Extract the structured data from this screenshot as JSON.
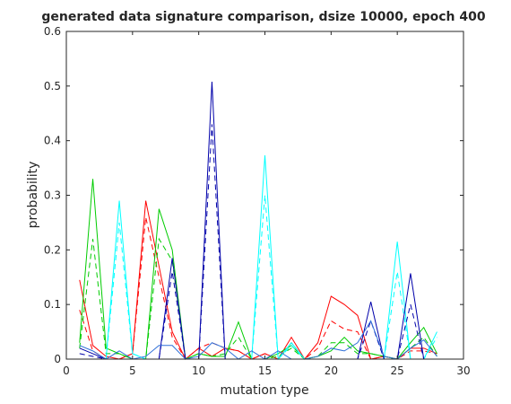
{
  "chart_data": {
    "type": "line",
    "title": "generated data signature comparison, dsize 10000, epoch 400",
    "xlabel": "mutation type",
    "ylabel": "probability",
    "xlim": [
      0,
      30
    ],
    "ylim": [
      0,
      0.6
    ],
    "xticks": [
      0,
      5,
      10,
      15,
      20,
      25,
      30
    ],
    "yticks": [
      0,
      0.1,
      0.2,
      0.3,
      0.4,
      0.5,
      0.6
    ],
    "xtick_labels": [
      "0",
      "5",
      "10",
      "15",
      "20",
      "25",
      "30"
    ],
    "ytick_labels": [
      "0",
      "0.1",
      "0.2",
      "0.3",
      "0.4",
      "0.5",
      "0.6"
    ],
    "grid": false,
    "legend": "none",
    "x": [
      1,
      2,
      3,
      4,
      5,
      6,
      7,
      8,
      9,
      10,
      11,
      12,
      13,
      14,
      15,
      16,
      17,
      18,
      19,
      20,
      21,
      22,
      23,
      24,
      25,
      26,
      27,
      28
    ],
    "series": [
      {
        "color": "#ff0000",
        "style": "solid",
        "values": [
          0.145,
          0.025,
          0.005,
          0.0,
          0.01,
          0.29,
          0.17,
          0.05,
          0.0,
          0.02,
          0.005,
          0.02,
          0.015,
          0.0,
          0.01,
          0.0,
          0.04,
          0.0,
          0.03,
          0.115,
          0.1,
          0.08,
          0.0,
          0.005,
          0.0,
          0.02,
          0.02,
          0.01
        ]
      },
      {
        "color": "#ff0000",
        "style": "dashed",
        "values": [
          0.09,
          0.015,
          0.0,
          0.0,
          0.01,
          0.26,
          0.15,
          0.04,
          0.0,
          0.02,
          0.03,
          0.02,
          0.015,
          0.0,
          0.01,
          0.0,
          0.03,
          0.0,
          0.02,
          0.07,
          0.055,
          0.05,
          0.0,
          0.005,
          0.0,
          0.015,
          0.015,
          0.01
        ]
      },
      {
        "color": "#00cc00",
        "style": "solid",
        "values": [
          0.03,
          0.33,
          0.02,
          0.01,
          0.0,
          0.0,
          0.275,
          0.2,
          0.0,
          0.01,
          0.005,
          0.005,
          0.068,
          0.0,
          0.0,
          0.01,
          0.025,
          0.0,
          0.005,
          0.015,
          0.04,
          0.015,
          0.01,
          0.005,
          0.0,
          0.03,
          0.058,
          0.01
        ]
      },
      {
        "color": "#00cc00",
        "style": "dashed",
        "values": [
          0.02,
          0.22,
          0.01,
          0.01,
          0.0,
          0.0,
          0.22,
          0.18,
          0.0,
          0.01,
          0.005,
          0.01,
          0.04,
          0.0,
          0.0,
          0.005,
          0.02,
          0.0,
          0.005,
          0.03,
          0.03,
          0.01,
          0.01,
          0.005,
          0.0,
          0.02,
          0.04,
          0.005
        ]
      },
      {
        "color": "#00ffff",
        "style": "solid",
        "values": [
          0.0,
          0.0,
          0.0,
          0.29,
          0.01,
          0.0,
          0.0,
          0.0,
          0.0,
          0.0,
          0.0,
          0.0,
          0.0,
          0.0,
          0.373,
          0.0,
          0.03,
          0.0,
          0.0,
          0.0,
          0.0,
          0.0,
          0.0,
          0.0,
          0.215,
          0.0,
          0.0,
          0.05
        ]
      },
      {
        "color": "#00ffff",
        "style": "dashed",
        "values": [
          0.0,
          0.0,
          0.0,
          0.25,
          0.01,
          0.0,
          0.0,
          0.0,
          0.0,
          0.0,
          0.0,
          0.0,
          0.0,
          0.0,
          0.3,
          0.0,
          0.025,
          0.0,
          0.0,
          0.0,
          0.0,
          0.0,
          0.0,
          0.0,
          0.16,
          0.0,
          0.0,
          0.04
        ]
      },
      {
        "color": "#0000aa",
        "style": "solid",
        "values": [
          0.02,
          0.01,
          0.0,
          0.0,
          0.0,
          0.0,
          0.0,
          0.185,
          0.0,
          0.0,
          0.508,
          0.0,
          0.0,
          0.0,
          0.0,
          0.0,
          0.0,
          0.0,
          0.0,
          0.0,
          0.0,
          0.0,
          0.105,
          0.0,
          0.0,
          0.157,
          0.0,
          0.0
        ]
      },
      {
        "color": "#0000aa",
        "style": "dashed",
        "values": [
          0.01,
          0.005,
          0.0,
          0.0,
          0.0,
          0.0,
          0.0,
          0.16,
          0.0,
          0.0,
          0.43,
          0.0,
          0.0,
          0.0,
          0.0,
          0.0,
          0.0,
          0.0,
          0.0,
          0.0,
          0.0,
          0.0,
          0.07,
          0.0,
          0.0,
          0.1,
          0.0,
          0.0
        ]
      },
      {
        "color": "#2e6fd8",
        "style": "solid",
        "values": [
          0.025,
          0.015,
          0.0,
          0.015,
          0.0,
          0.005,
          0.025,
          0.025,
          0.0,
          0.005,
          0.03,
          0.02,
          0.0,
          0.015,
          0.0,
          0.015,
          0.0,
          0.0,
          0.005,
          0.02,
          0.015,
          0.03,
          0.07,
          0.005,
          0.0,
          0.02,
          0.035,
          0.005
        ]
      }
    ]
  }
}
